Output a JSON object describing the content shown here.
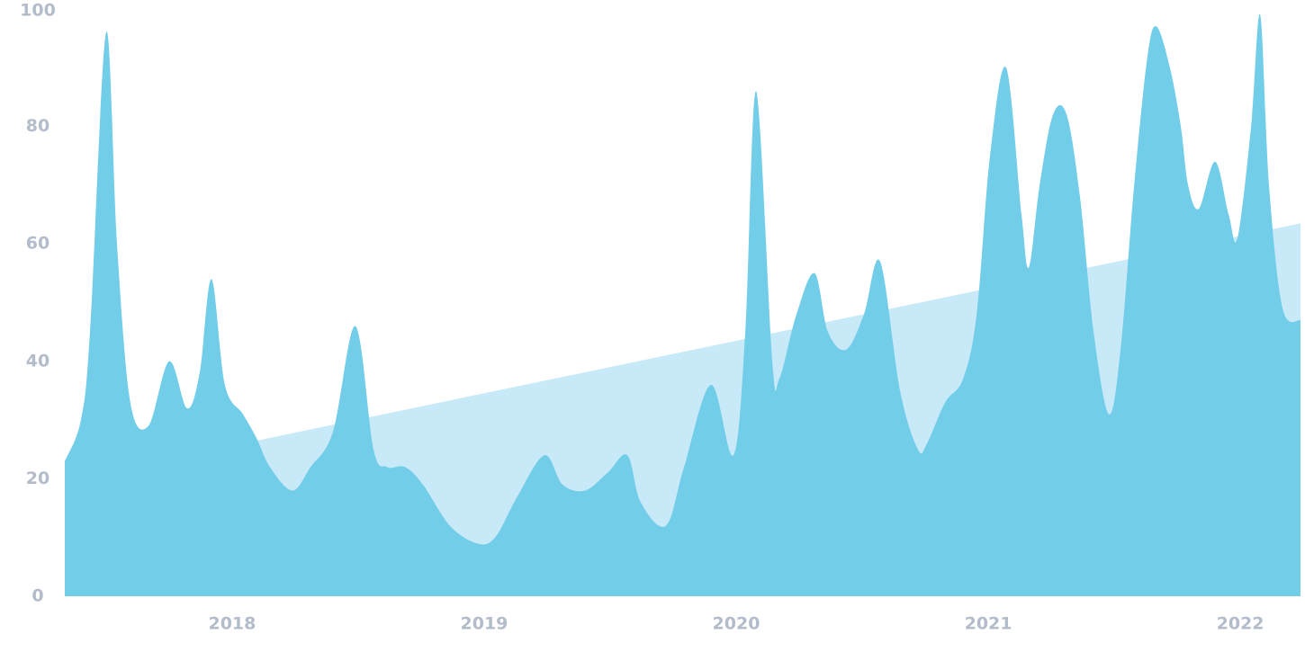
{
  "chart_data": {
    "type": "area",
    "x": [
      2017.336,
      2017.4,
      2017.436,
      2017.5,
      2017.543,
      2017.596,
      2017.668,
      2017.75,
      2017.821,
      2017.871,
      2017.918,
      2017.971,
      2018.043,
      2018.096,
      2018.15,
      2018.239,
      2018.311,
      2018.4,
      2018.489,
      2018.561,
      2018.614,
      2018.686,
      2018.757,
      2018.864,
      2018.971,
      2019.043,
      2019.132,
      2019.239,
      2019.311,
      2019.4,
      2019.489,
      2019.568,
      2019.621,
      2019.721,
      2019.793,
      2019.9,
      2019.989,
      2020.036,
      2020.079,
      2020.143,
      2020.171,
      2020.239,
      2020.311,
      2020.364,
      2020.436,
      2020.507,
      2020.571,
      2020.65,
      2020.721,
      2020.757,
      2020.829,
      2020.9,
      2020.954,
      2021.007,
      2021.071,
      2021.132,
      2021.161,
      2021.204,
      2021.257,
      2021.311,
      2021.364,
      2021.418,
      2021.479,
      2021.525,
      2021.579,
      2021.632,
      2021.668,
      2021.721,
      2021.764,
      2021.793,
      2021.836,
      2021.9,
      2021.954,
      2021.989,
      2022.043,
      2022.079,
      2022.114,
      2022.168,
      2022.239
    ],
    "values": [
      23,
      30,
      45,
      96,
      60,
      33,
      29,
      40,
      32,
      38,
      54,
      36,
      31,
      27,
      22,
      18,
      22,
      28,
      46,
      25,
      22,
      22,
      19,
      12,
      9,
      10,
      17,
      24,
      19,
      18,
      21,
      24,
      16,
      12,
      22,
      36,
      24,
      45,
      86,
      40,
      37,
      48,
      55,
      45,
      42,
      48,
      57,
      35,
      25,
      26,
      33,
      37,
      48,
      75,
      90,
      65,
      56,
      70,
      82,
      82,
      68,
      45,
      31,
      42,
      70,
      92,
      97,
      90,
      80,
      70,
      66,
      74,
      65,
      61,
      80,
      99,
      70,
      49,
      47
    ],
    "color": "#72cde8",
    "trend": {
      "x": [
        2017.336,
        2022.239
      ],
      "values": [
        19.7,
        63.5
      ],
      "color": "#c8e9f8"
    },
    "xlim": [
      2017.336,
      2022.239
    ],
    "xticks": [
      2018,
      2019,
      2020,
      2021,
      2022
    ],
    "ylim": [
      0,
      100
    ],
    "yticks": [
      0,
      20,
      40,
      60,
      80,
      100
    ]
  }
}
